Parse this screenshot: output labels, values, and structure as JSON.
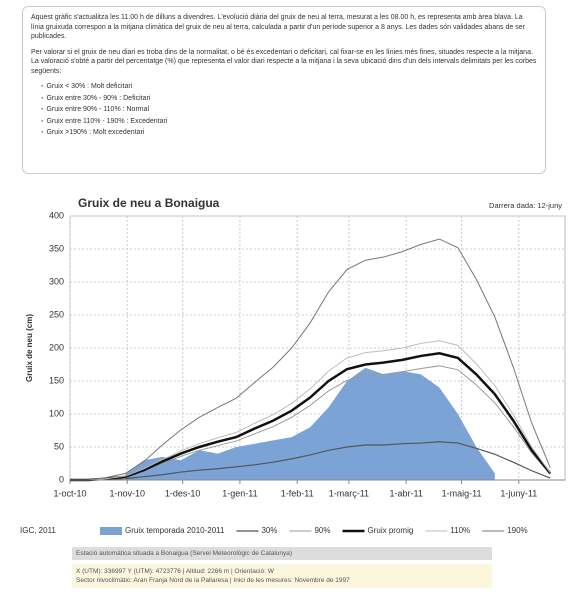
{
  "intro": {
    "paragraphs": [
      "Aquest gràfic s'actualitza les 11.00 h de dilluns a divendres. L'evolució diària del gruix de neu al terra, mesurat a les 08.00 h, es representa amb àrea blava. La línia gruixuda correspon a la mitjana climàtica del gruix de neu al terra, calculada a partir d'un període superior a 8 anys. Les dades són validades abans de ser publicades.",
      "Per valorar si el gruix de neu diari es troba dins de la normalitat, o bé és excedentari o deficitari, cal fixar-se en les línies més fines, situades respecte a la mitjana. La valoració s'obté a partir del percentatge (%) que representa el valor diari respecte a la mitjana i la seva ubicació dins d'un dels intervals delimitats per les corbes següents:"
    ],
    "list": [
      "Gruix < 30% : Molt deficitari",
      "Gruix entre 30% - 90% : Deficitari",
      "Gruix entre 90% - 110% : Normal",
      "Gruix entre 110% - 190% : Excedentari",
      "Gruix >190% : Molt excedentari"
    ]
  },
  "chart_data": {
    "type": "line",
    "title": "Gruix de neu a Bonaigua",
    "subtitle": "Darrera dada: 12-juny",
    "ylabel": "Gruix de neu (cm)",
    "credit": "IGC, 2011",
    "x": [
      0,
      10,
      20,
      30,
      40,
      50,
      60,
      70,
      80,
      90,
      100,
      110,
      120,
      130,
      140,
      150,
      160,
      170,
      180,
      190,
      200,
      210,
      220,
      230,
      240,
      250,
      260
    ],
    "xlim": [
      0,
      268
    ],
    "xticks": [
      {
        "value": 0,
        "label": "1-oct-10"
      },
      {
        "value": 31,
        "label": "1-nov-10"
      },
      {
        "value": 61,
        "label": "1-des-10"
      },
      {
        "value": 92,
        "label": "1-gen-11"
      },
      {
        "value": 123,
        "label": "1-feb-11"
      },
      {
        "value": 151,
        "label": "1-març-11"
      },
      {
        "value": 182,
        "label": "1-abr-11"
      },
      {
        "value": 212,
        "label": "1-maig-11"
      },
      {
        "value": 243,
        "label": "1-juny-11"
      }
    ],
    "ylim": [
      0,
      400
    ],
    "yticks": [
      0,
      50,
      100,
      150,
      200,
      250,
      300,
      350,
      400
    ],
    "grid": true,
    "series": [
      {
        "name": "Gruix temporada 2010-2011",
        "kind": "area",
        "color": "#7ba3d6",
        "values": [
          null,
          null,
          null,
          10,
          30,
          35,
          30,
          45,
          40,
          50,
          55,
          60,
          65,
          80,
          110,
          150,
          170,
          160,
          165,
          160,
          140,
          100,
          50,
          10,
          null,
          null,
          null
        ]
      },
      {
        "name": "30%",
        "color": "#555555",
        "width": 1.2,
        "values": [
          0,
          0,
          1,
          2,
          5,
          8,
          12,
          15,
          17,
          20,
          23,
          27,
          32,
          38,
          45,
          50,
          53,
          53,
          55,
          56,
          58,
          56,
          48,
          39,
          27,
          14,
          3
        ]
      },
      {
        "name": "90%",
        "color": "#9a9a9a",
        "width": 1,
        "values": [
          0,
          0,
          2,
          5,
          14,
          25,
          36,
          45,
          52,
          59,
          70,
          81,
          95,
          113,
          135,
          151,
          158,
          160,
          164,
          169,
          173,
          167,
          144,
          117,
          81,
          41,
          9
        ]
      },
      {
        "name": "Gruix promig",
        "color": "#111111",
        "width": 2.5,
        "values": [
          0,
          0,
          2,
          5,
          15,
          28,
          40,
          50,
          58,
          65,
          78,
          90,
          105,
          125,
          150,
          168,
          175,
          178,
          182,
          188,
          192,
          185,
          160,
          130,
          90,
          45,
          10
        ]
      },
      {
        "name": "110%",
        "color": "#bdbdbd",
        "width": 1,
        "values": [
          0,
          0,
          2,
          6,
          17,
          31,
          44,
          55,
          64,
          72,
          86,
          99,
          116,
          138,
          165,
          185,
          193,
          196,
          200,
          207,
          211,
          204,
          176,
          143,
          99,
          50,
          11
        ]
      },
      {
        "name": "190%",
        "color": "#777777",
        "width": 1,
        "values": [
          0,
          0,
          4,
          10,
          28,
          53,
          76,
          95,
          110,
          124,
          148,
          171,
          200,
          238,
          285,
          319,
          333,
          338,
          346,
          357,
          365,
          352,
          304,
          247,
          171,
          86,
          19
        ]
      }
    ]
  },
  "footer": {
    "source": "Estació automàtica situada a Bonaigua (Servei Meteorològic de Catalunya)",
    "lines": [
      "X (UTM): 336997 Y (UTM): 4723776 | Altitud: 2266 m | Orientació: W",
      "Sector nivoclimàtic: Aran Franja Nord de la Pallaresa | Inici de les mesures: Novembre de 1997"
    ]
  }
}
